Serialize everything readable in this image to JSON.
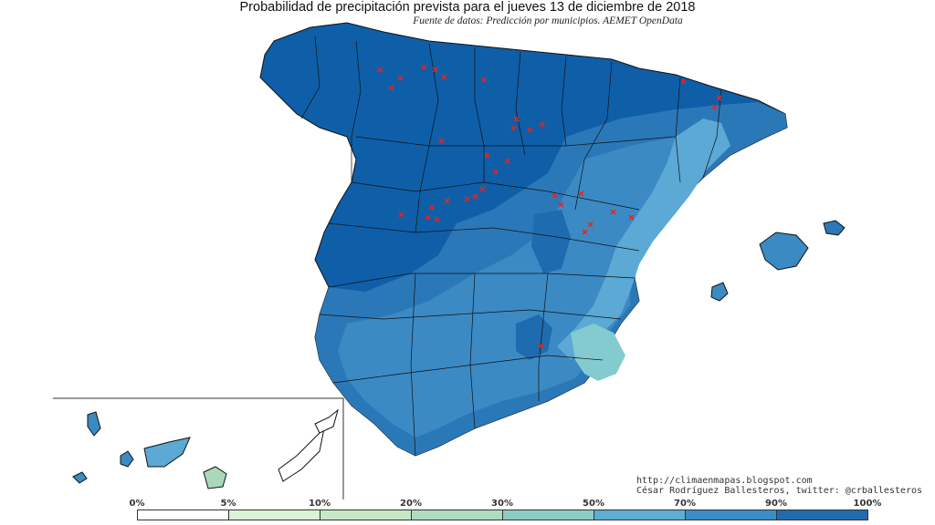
{
  "header": {
    "title": "Probabilidad de precipitación prevista para el jueves 13 de diciembre de 2018",
    "subtitle": "Fuente de datos: Predicción por municipios. AEMET OpenData"
  },
  "credits": {
    "blog": "http://climaenmapas.blogspot.com",
    "author": "César Rodríguez Ballesteros, twitter: @crballesteros"
  },
  "legend": {
    "labels": [
      "0%",
      "5%",
      "10%",
      "20%",
      "30%",
      "50%",
      "70%",
      "90%",
      "100%"
    ],
    "colors": [
      "#ffffff",
      "#dcf2d4",
      "#c7e8c5",
      "#afdcc0",
      "#8ecdc5",
      "#5eaed4",
      "#3a8ec6",
      "#1e6bb0",
      "#0b5ca8"
    ]
  },
  "map": {
    "colors": {
      "very_high": "#0e5fa8",
      "high": "#2b78b8",
      "mid": "#3c8ac4",
      "low": "#5ba9d4",
      "very_low": "#84cbd0",
      "canarias_low": "#a9d9b8",
      "marker": "#e8231f"
    }
  }
}
